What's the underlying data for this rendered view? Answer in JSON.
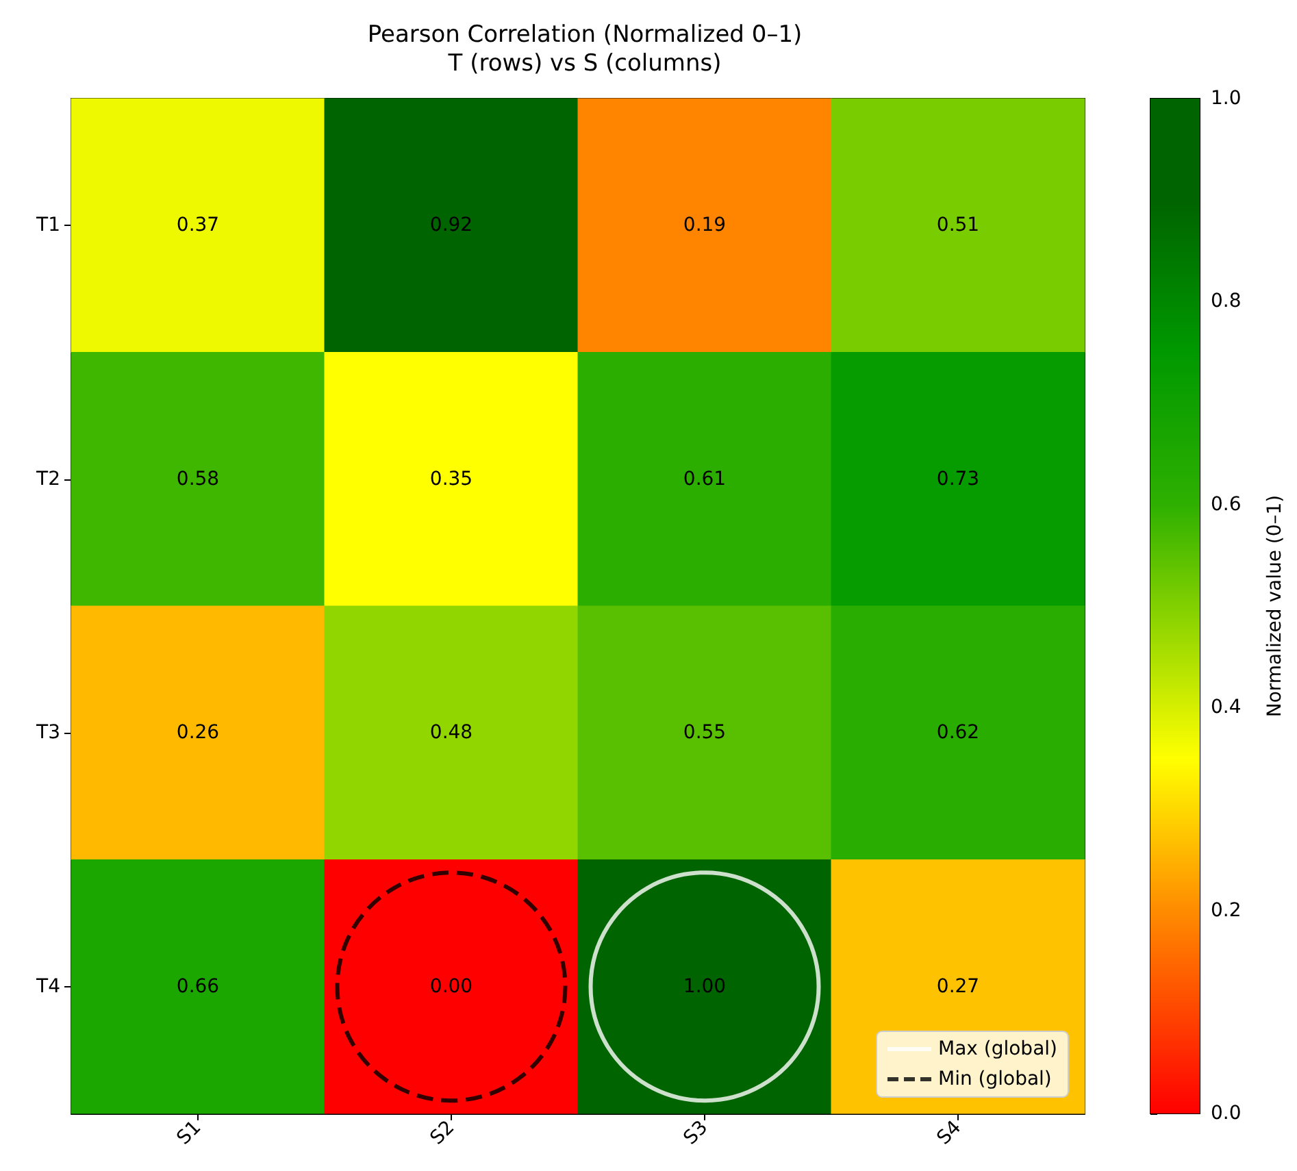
{
  "chart_data": {
    "type": "heatmap",
    "title": "Pearson Correlation (Normalized 0–1)",
    "subtitle": "T (rows) vs S (columns)",
    "categories": [
      "S1",
      "S2",
      "S3",
      "S4"
    ],
    "y_categories": [
      "T1",
      "T2",
      "T3",
      "T4"
    ],
    "cells": [
      [
        0.37,
        0.92,
        0.19,
        0.51
      ],
      [
        0.58,
        0.35,
        0.61,
        0.73
      ],
      [
        0.26,
        0.48,
        0.55,
        0.62
      ],
      [
        0.66,
        0.0,
        1.0,
        0.27
      ]
    ],
    "cell_labels": [
      [
        "0.37",
        "0.92",
        "0.19",
        "0.51"
      ],
      [
        "0.58",
        "0.35",
        "0.61",
        "0.73"
      ],
      [
        "0.26",
        "0.48",
        "0.55",
        "0.62"
      ],
      [
        "0.66",
        "0.00",
        "1.00",
        "0.27"
      ]
    ],
    "data_labels": true,
    "clim": [
      0,
      1
    ],
    "cticks": [
      {
        "value": 0,
        "label": "0.0"
      },
      {
        "value": 0.2,
        "label": "0.2"
      },
      {
        "value": 0.4,
        "label": "0.4"
      },
      {
        "value": 0.6,
        "label": "0.6"
      },
      {
        "value": 0.8,
        "label": "0.8"
      },
      {
        "value": 1,
        "label": "1.0"
      }
    ],
    "clabel": "Normalized value (0–1)",
    "annotations": [
      "Max (global)",
      "Min (global)"
    ],
    "grid": false
  }
}
